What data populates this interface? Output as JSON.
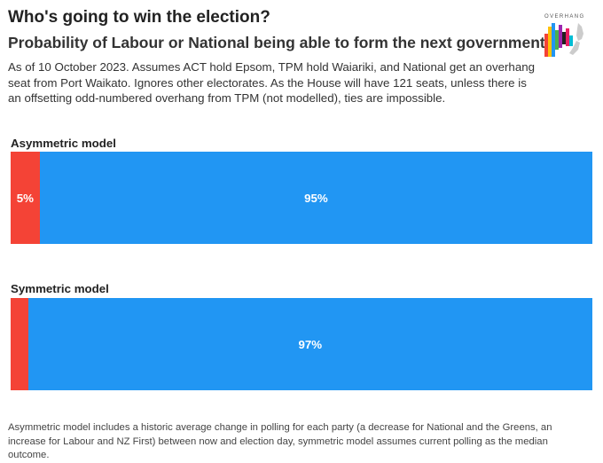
{
  "title": "Who's going to win the election?",
  "subtitle": "Probability of Labour or National being able to form the next government",
  "note": "As of 10 October 2023. Assumes ACT hold Epsom, TPM hold Waiariki, and National get an overhang seat from Port Waikato. Ignores other electorates. As the House will have 121 seats, unless there is an offsetting odd-numbered overhang from TPM (not modelled), ties are impossible.",
  "footnote": "Asymmetric model includes a historic average change in polling for each party (a decrease for National and the Greens, an increase for Labour and NZ First) between now and election day, symmetric model assumes current polling as the median outcome.",
  "logo": {
    "text": "OVERHANG",
    "icon": "overhang-logo-icon"
  },
  "colors": {
    "labour": "#f44336",
    "national": "#2196f3"
  },
  "chart_data": [
    {
      "type": "bar",
      "orientation": "horizontal-stacked-100",
      "title": "Asymmetric model",
      "series": [
        {
          "values": [
            5
          ],
          "color": "#f44336",
          "label": "5%"
        },
        {
          "values": [
            95
          ],
          "color": "#2196f3",
          "label": "95%"
        }
      ]
    },
    {
      "type": "bar",
      "orientation": "horizontal-stacked-100",
      "title": "Symmetric model",
      "series": [
        {
          "values": [
            3
          ],
          "color": "#f44336",
          "label": ""
        },
        {
          "values": [
            97
          ],
          "color": "#2196f3",
          "label": "97%"
        }
      ]
    }
  ]
}
